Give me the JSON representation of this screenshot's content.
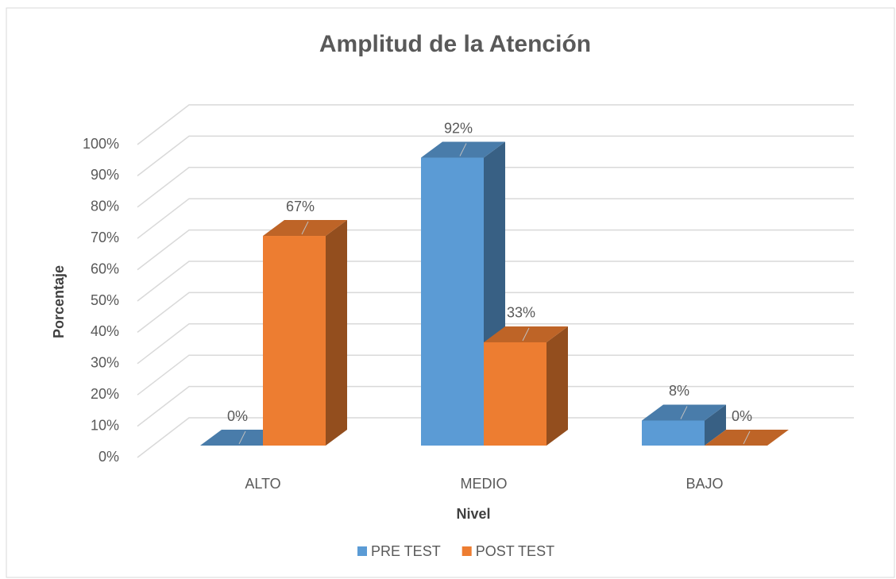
{
  "chart_data": {
    "type": "bar3d",
    "title": "Amplitud de la Atención",
    "x_label": "Nivel",
    "y_label": "Porcentaje",
    "categories": [
      "ALTO",
      "MEDIO",
      "BAJO"
    ],
    "series": [
      {
        "name": "PRE TEST",
        "color": "#5b9bd5",
        "values": [
          0,
          92,
          8
        ],
        "value_labels": [
          "0%",
          "92%",
          "8%"
        ]
      },
      {
        "name": "POST TEST",
        "color": "#ed7d31",
        "values": [
          67,
          33,
          0
        ],
        "value_labels": [
          "67%",
          "33%",
          "0%"
        ]
      }
    ],
    "ylim": [
      0,
      100
    ],
    "yticks": [
      {
        "value": 0,
        "label": "0%"
      },
      {
        "value": 10,
        "label": "10%"
      },
      {
        "value": 20,
        "label": "20%"
      },
      {
        "value": 30,
        "label": "30%"
      },
      {
        "value": 40,
        "label": "40%"
      },
      {
        "value": 50,
        "label": "50%"
      },
      {
        "value": 60,
        "label": "60%"
      },
      {
        "value": 70,
        "label": "70%"
      },
      {
        "value": 80,
        "label": "80%"
      },
      {
        "value": 90,
        "label": "90%"
      },
      {
        "value": 100,
        "label": "100%"
      }
    ],
    "grid": true,
    "legend": "bottom"
  }
}
